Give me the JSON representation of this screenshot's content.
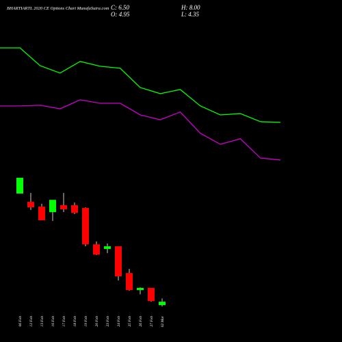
{
  "chart_data": [
    {
      "type": "candlestick",
      "title": "BHARTIARTL 2020 CE Options Chart MunafaSutra.com",
      "annotations": [
        "C: 6.50",
        "H: 8.00",
        "O: 4.95",
        "L: 4.35"
      ],
      "categories": [
        "06 Feb",
        "12 Feb",
        "13 Feb",
        "16 Feb",
        "17 Feb",
        "18 Feb",
        "19 Feb",
        "20 Feb",
        "23 Feb",
        "24 Feb",
        "25 Feb",
        "26 Feb",
        "27 Feb",
        "02 Mar"
      ],
      "open": [
        55.9,
        52.1,
        49.9,
        47.4,
        50.6,
        50.6,
        49.3,
        32.7,
        30.6,
        31.8,
        19.6,
        11.8,
        12.8,
        4.95
      ],
      "high": [
        63.1,
        56.2,
        51.2,
        53.0,
        56.2,
        51.8,
        49.6,
        34.0,
        33.1,
        31.8,
        21.5,
        13.1,
        12.8,
        8.0
      ],
      "low": [
        55.9,
        48.4,
        43.7,
        43.4,
        47.4,
        46.5,
        31.8,
        27.8,
        28.7,
        16.2,
        11.5,
        9.9,
        6.5,
        4.35
      ],
      "close": [
        63.1,
        49.6,
        43.7,
        53.0,
        48.7,
        47.1,
        32.7,
        28.0,
        31.8,
        18.1,
        11.8,
        12.8,
        6.8,
        6.5
      ],
      "up_color": "#00ff00",
      "down_color": "#ff0000"
    },
    {
      "type": "line",
      "categories": [
        null,
        null,
        null,
        null,
        null,
        null,
        null,
        null,
        null,
        null,
        null,
        null,
        null,
        null,
        null
      ],
      "series": [
        {
          "color": "#00ff00",
          "values": [
            122.4,
            122.4,
            114.3,
            110.9,
            116.2,
            114.0,
            113.1,
            104.3,
            101.5,
            103.4,
            95.9,
            91.8,
            92.4,
            88.7,
            88.4
          ]
        },
        {
          "color": "#cc00cc",
          "values": [
            95.9,
            95.9,
            96.2,
            94.6,
            98.7,
            97.1,
            97.1,
            91.8,
            89.6,
            93.1,
            83.4,
            78.4,
            80.9,
            72.1,
            71.2
          ]
        }
      ]
    }
  ]
}
